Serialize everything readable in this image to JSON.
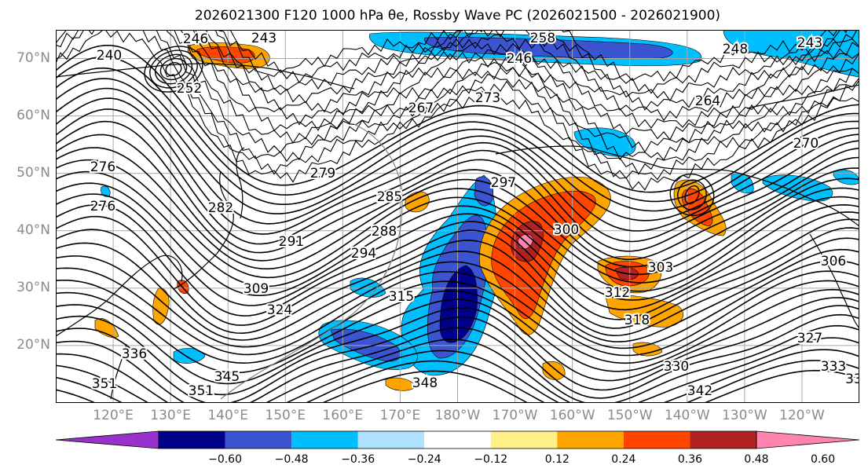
{
  "figure": {
    "title": "2026021300 F120 1000 hPa θe, Rossby Wave PC (2026021500 - 2026021900)"
  },
  "map": {
    "projection": "cylindrical",
    "lon_range": [
      110,
      250
    ],
    "lat_range": [
      10,
      75
    ],
    "lat_labels": [
      "20°N",
      "30°N",
      "40°N",
      "50°N",
      "60°N",
      "70°N"
    ],
    "lon_labels": [
      "120°E",
      "130°E",
      "140°E",
      "150°E",
      "160°E",
      "170°E",
      "180°W",
      "170°W",
      "160°W",
      "150°W",
      "140°W",
      "130°W",
      "120°W"
    ],
    "grid": true
  },
  "contour_labels": [
    "246",
    "243",
    "240",
    "252",
    "258",
    "246",
    "248",
    "243",
    "273",
    "267",
    "264",
    "270",
    "276",
    "279",
    "276",
    "282",
    "285",
    "288",
    "291",
    "294",
    "297",
    "300",
    "303",
    "306",
    "309",
    "312",
    "315",
    "318",
    "324",
    "327",
    "330",
    "333",
    "336",
    "342",
    "345",
    "348",
    "351",
    "351",
    "33"
  ],
  "colorbar": {
    "tick_labels": [
      "−0.60",
      "−0.48",
      "−0.36",
      "−0.24",
      "−0.12",
      "0.12",
      "0.24",
      "0.36",
      "0.48",
      "0.60"
    ],
    "colors": [
      "#9932cc",
      "#00008b",
      "#3a55cf",
      "#00bfff",
      "#b0e2ff",
      "#ffffff",
      "#fff08a",
      "#ffa500",
      "#ff4500",
      "#b22222",
      "#ff85b0"
    ]
  },
  "anomaly_colors": {
    "neg_strong": "#00008b",
    "neg_mid": "#3a55cf",
    "neg_weak": "#00bfff",
    "pos_weak": "#ffa500",
    "pos_mid": "#ff4500",
    "pos_strong": "#b22222",
    "pos_max": "#ff85b0"
  }
}
